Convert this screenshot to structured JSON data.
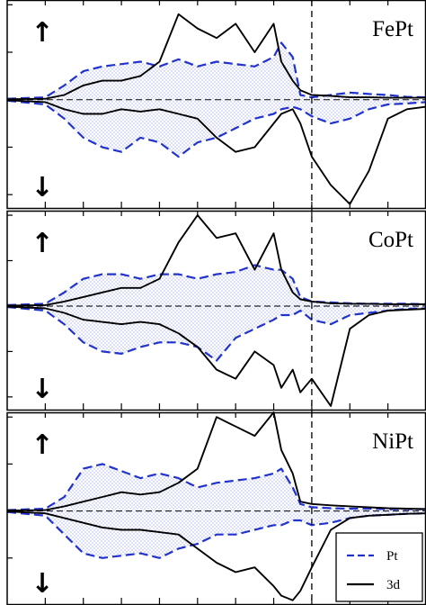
{
  "chart_data": {
    "type": "line",
    "layout": "three vertically stacked panels sharing one x axis (spin-resolved densities of states)",
    "legend": {
      "placement": "bottom-right of last panel",
      "entries": [
        {
          "label": "Pt",
          "color": "#2233cc",
          "style": "dashed, stippled fill"
        },
        {
          "label": "3d",
          "color": "#000000",
          "style": "solid"
        }
      ]
    },
    "reference_lines": {
      "vertical_dashed_x": 0.0,
      "horizontal_dashed_y": 0.0
    },
    "xlim": [
      -8.0,
      3.0
    ],
    "x_ticks": [
      -8,
      -7,
      -6,
      -5,
      -4,
      -3,
      -2,
      -1,
      0,
      1,
      2,
      3
    ],
    "y_ticks_per_panel": [
      -2,
      -1,
      0,
      1,
      2
    ],
    "grid": false,
    "spin_arrows": {
      "up": "↑",
      "down": "↓"
    },
    "panels": [
      {
        "label": "FePt",
        "ylim": [
          -2.3,
          2.1
        ],
        "x": [
          -8.0,
          -7.0,
          -6.5,
          -6.0,
          -5.5,
          -5.0,
          -4.5,
          -4.0,
          -3.5,
          -3.0,
          -2.5,
          -2.0,
          -1.5,
          -1.0,
          -0.8,
          -0.5,
          -0.3,
          0.0,
          0.5,
          1.0,
          1.5,
          2.0,
          2.5,
          3.0
        ],
        "series": [
          {
            "name": "Pt",
            "spin": "up",
            "values": [
              0.02,
              0.05,
              0.3,
              0.6,
              0.7,
              0.75,
              0.8,
              0.7,
              0.85,
              0.7,
              0.8,
              0.75,
              0.7,
              0.9,
              1.2,
              0.9,
              0.1,
              0.05,
              0.1,
              0.15,
              0.12,
              0.1,
              0.06,
              0.05
            ]
          },
          {
            "name": "Pt",
            "spin": "down",
            "values": [
              -0.02,
              -0.1,
              -0.4,
              -0.8,
              -1.0,
              -1.1,
              -0.8,
              -0.9,
              -1.2,
              -0.9,
              -0.8,
              -0.6,
              -0.4,
              -0.3,
              -0.2,
              -0.15,
              -0.2,
              -0.35,
              -0.5,
              -0.4,
              -0.2,
              -0.1,
              -0.08,
              -0.05
            ]
          },
          {
            "name": "3d",
            "spin": "up",
            "values": [
              0.01,
              0.02,
              0.1,
              0.3,
              0.4,
              0.4,
              0.5,
              0.8,
              1.8,
              1.5,
              1.3,
              1.6,
              1.0,
              1.6,
              0.8,
              0.4,
              0.2,
              0.1,
              0.08,
              0.05,
              0.05,
              0.04,
              0.04,
              0.04
            ]
          },
          {
            "name": "3d",
            "spin": "down",
            "values": [
              -0.01,
              -0.05,
              -0.2,
              -0.3,
              -0.3,
              -0.2,
              -0.25,
              -0.2,
              -0.3,
              -0.4,
              -0.8,
              -1.1,
              -1.0,
              -0.5,
              -0.3,
              -0.2,
              -0.5,
              -1.2,
              -1.8,
              -2.2,
              -1.5,
              -0.4,
              -0.2,
              -0.15
            ]
          }
        ]
      },
      {
        "label": "CoPt",
        "ylim": [
          -2.3,
          2.1
        ],
        "x": [
          -8.0,
          -7.0,
          -6.5,
          -6.0,
          -5.5,
          -5.0,
          -4.5,
          -4.0,
          -3.5,
          -3.0,
          -2.5,
          -2.0,
          -1.5,
          -1.0,
          -0.8,
          -0.5,
          -0.3,
          0.0,
          0.5,
          1.0,
          1.5,
          2.0,
          2.5,
          3.0
        ],
        "series": [
          {
            "name": "Pt",
            "spin": "up",
            "values": [
              0.02,
              0.05,
              0.3,
              0.6,
              0.7,
              0.7,
              0.6,
              0.7,
              0.7,
              0.6,
              0.7,
              0.75,
              0.9,
              0.8,
              0.8,
              0.6,
              0.2,
              0.1,
              0.08,
              0.06,
              0.05,
              0.05,
              0.05,
              0.04
            ]
          },
          {
            "name": "Pt",
            "spin": "down",
            "values": [
              -0.02,
              -0.1,
              -0.4,
              -0.8,
              -1.0,
              -1.05,
              -0.9,
              -0.8,
              -0.8,
              -0.9,
              -1.2,
              -0.7,
              -0.5,
              -0.3,
              -0.2,
              -0.2,
              -0.1,
              -0.3,
              -0.4,
              -0.2,
              -0.15,
              -0.1,
              -0.06,
              -0.05
            ]
          },
          {
            "name": "3d",
            "spin": "up",
            "values": [
              0.01,
              0.02,
              0.1,
              0.2,
              0.3,
              0.4,
              0.4,
              0.6,
              1.4,
              2.0,
              1.5,
              1.6,
              0.8,
              1.6,
              0.8,
              0.3,
              0.15,
              0.1,
              0.06,
              0.05,
              0.05,
              0.04,
              0.04,
              0.04
            ]
          },
          {
            "name": "3d",
            "spin": "down",
            "values": [
              -0.01,
              -0.05,
              -0.15,
              -0.3,
              -0.35,
              -0.4,
              -0.35,
              -0.4,
              -0.6,
              -0.9,
              -1.4,
              -1.6,
              -1.0,
              -1.3,
              -1.8,
              -1.4,
              -1.9,
              -1.6,
              -2.2,
              -0.5,
              -0.2,
              -0.1,
              -0.08,
              -0.06
            ]
          }
        ]
      },
      {
        "label": "NiPt",
        "ylim": [
          -2.0,
          2.1
        ],
        "x": [
          -8.0,
          -7.0,
          -6.5,
          -6.0,
          -5.5,
          -5.0,
          -4.5,
          -4.0,
          -3.5,
          -3.0,
          -2.5,
          -2.0,
          -1.5,
          -1.0,
          -0.8,
          -0.5,
          -0.3,
          0.0,
          0.5,
          1.0,
          1.5,
          2.0,
          2.5,
          3.0
        ],
        "series": [
          {
            "name": "Pt",
            "spin": "up",
            "values": [
              0.02,
              0.05,
              0.3,
              0.9,
              1.0,
              0.85,
              0.7,
              0.8,
              0.7,
              0.5,
              0.6,
              0.65,
              0.7,
              0.8,
              0.9,
              0.5,
              0.15,
              0.08,
              0.06,
              0.05,
              0.05,
              0.04,
              0.04,
              0.04
            ]
          },
          {
            "name": "Pt",
            "spin": "down",
            "values": [
              -0.02,
              -0.1,
              -0.5,
              -0.9,
              -1.0,
              -0.95,
              -0.9,
              -1.0,
              -0.8,
              -0.7,
              -0.5,
              -0.5,
              -0.4,
              -0.3,
              -0.3,
              -0.2,
              -0.2,
              -0.3,
              -0.25,
              -0.15,
              -0.1,
              -0.08,
              -0.06,
              -0.05
            ]
          },
          {
            "name": "3d",
            "spin": "up",
            "values": [
              0.01,
              0.02,
              0.1,
              0.2,
              0.3,
              0.4,
              0.35,
              0.4,
              0.6,
              0.9,
              2.0,
              1.8,
              1.6,
              2.1,
              1.3,
              0.8,
              0.2,
              0.15,
              0.12,
              0.1,
              0.08,
              0.06,
              0.05,
              0.04
            ]
          },
          {
            "name": "3d",
            "spin": "down",
            "values": [
              -0.01,
              -0.05,
              -0.15,
              -0.25,
              -0.35,
              -0.4,
              -0.4,
              -0.45,
              -0.5,
              -0.8,
              -1.1,
              -1.3,
              -1.2,
              -1.6,
              -1.8,
              -1.9,
              -1.7,
              -1.2,
              -0.4,
              -0.15,
              -0.1,
              -0.08,
              -0.06,
              -0.05
            ]
          }
        ]
      }
    ]
  }
}
